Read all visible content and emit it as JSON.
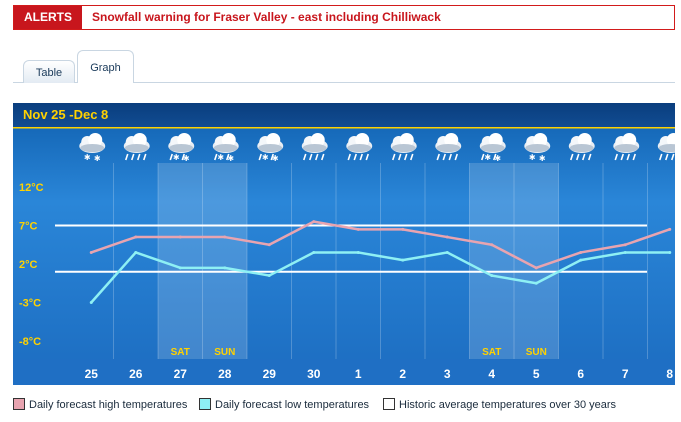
{
  "alerts": {
    "badge": "ALERTS",
    "message": "Snowfall warning for Fraser Valley - east including Chilliwack"
  },
  "tabs": [
    {
      "label": "Table",
      "active": false
    },
    {
      "label": "Graph",
      "active": true
    }
  ],
  "chart": {
    "title": "Nov 25  -Dec 8"
  },
  "legend": {
    "high": "Daily forecast high temperatures",
    "low": "Daily forecast low temperatures",
    "historic": "Historic average temperatures over 30 years"
  },
  "colors": {
    "alert_red": "#c8161d",
    "chart_bg": "#2a7fd0",
    "title_yellow": "#ffd200",
    "high_line": "#e8a4b0",
    "low_line": "#8ef0f4",
    "historic_line": "#ffffff"
  },
  "chart_data": {
    "type": "line",
    "title": "Nov 25  -Dec 8",
    "categories": [
      "25",
      "26",
      "27",
      "28",
      "29",
      "30",
      "1",
      "2",
      "3",
      "4",
      "5",
      "6",
      "7",
      "8"
    ],
    "weekend_labels": [
      "",
      "",
      "SAT",
      "SUN",
      "",
      "",
      "",
      "",
      "",
      "SAT",
      "SUN",
      "",
      "",
      ""
    ],
    "weather_icons": [
      "snow-cloud-icon",
      "rain-cloud-icon",
      "rain-snow-cloud-icon",
      "rain-snow-cloud-icon",
      "rain-snow-cloud-icon",
      "rain-cloud-icon",
      "rain-cloud-icon",
      "rain-cloud-icon",
      "rain-cloud-icon",
      "rain-snow-cloud-icon",
      "snow-cloud-icon",
      "rain-cloud-icon",
      "rain-cloud-icon",
      "rain-cloud-icon"
    ],
    "y_ticks": [
      12,
      7,
      2,
      -3,
      -8
    ],
    "y_tick_labels": [
      "12°C",
      "7°C",
      "2°C",
      "-3°C",
      "-8°C"
    ],
    "ylim": [
      -8,
      12
    ],
    "series": [
      {
        "name": "Daily forecast high temperatures",
        "values": [
          3.5,
          5.5,
          5.5,
          5.5,
          4.5,
          7.5,
          6.5,
          6.5,
          5.5,
          4.5,
          1.5,
          3.5,
          4.5,
          6.5
        ]
      },
      {
        "name": "Daily forecast low temperatures",
        "values": [
          -3.0,
          3.5,
          1.5,
          1.5,
          0.5,
          3.5,
          3.5,
          2.5,
          3.5,
          0.5,
          -0.5,
          2.5,
          3.5,
          3.5
        ]
      }
    ],
    "historic": {
      "name": "Historic average temperatures over 30 years",
      "high": 7,
      "low": 1
    },
    "weekend_columns": [
      2,
      3,
      9,
      10
    ]
  }
}
